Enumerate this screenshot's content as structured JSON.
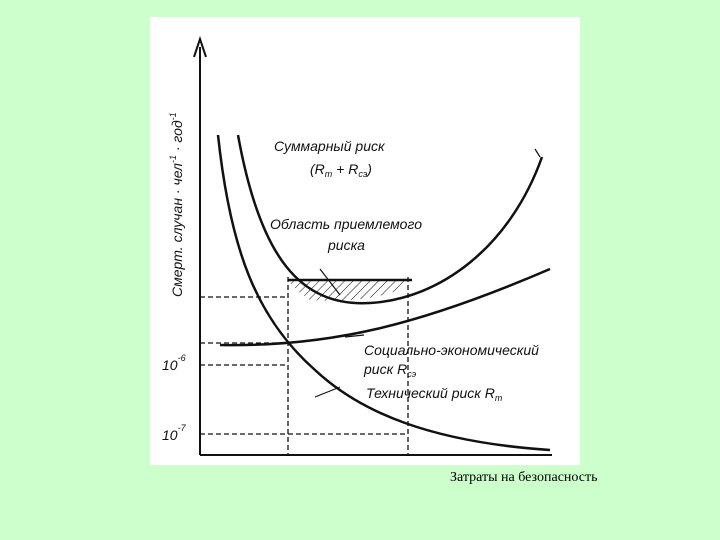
{
  "figure": {
    "y_axis_label": "Смерт. случан · чел",
    "y_axis_label_suffix": " · год",
    "y_axis_exp": "-1",
    "y_axis_exp2": "-1",
    "ticks": [
      {
        "base": "10",
        "exp": "-6"
      },
      {
        "base": "10",
        "exp": "-7"
      }
    ],
    "curves": {
      "total": {
        "line1": "Суммарный риск",
        "line2_a": "(R",
        "line2_sub_a": "т",
        "line2_b": " + R",
        "line2_sub_b": "сэ",
        "line2_c": ")"
      },
      "acceptable_area": {
        "line1": "Область приемлемого",
        "line2": "риска"
      },
      "socio_economic": {
        "line1": "Социально-экономический",
        "line2": "риск R",
        "line2_sub": "сэ"
      },
      "technical": {
        "line1": "Технический риск R",
        "line1_sub": "т"
      }
    }
  },
  "caption": "Затраты на безопасность"
}
